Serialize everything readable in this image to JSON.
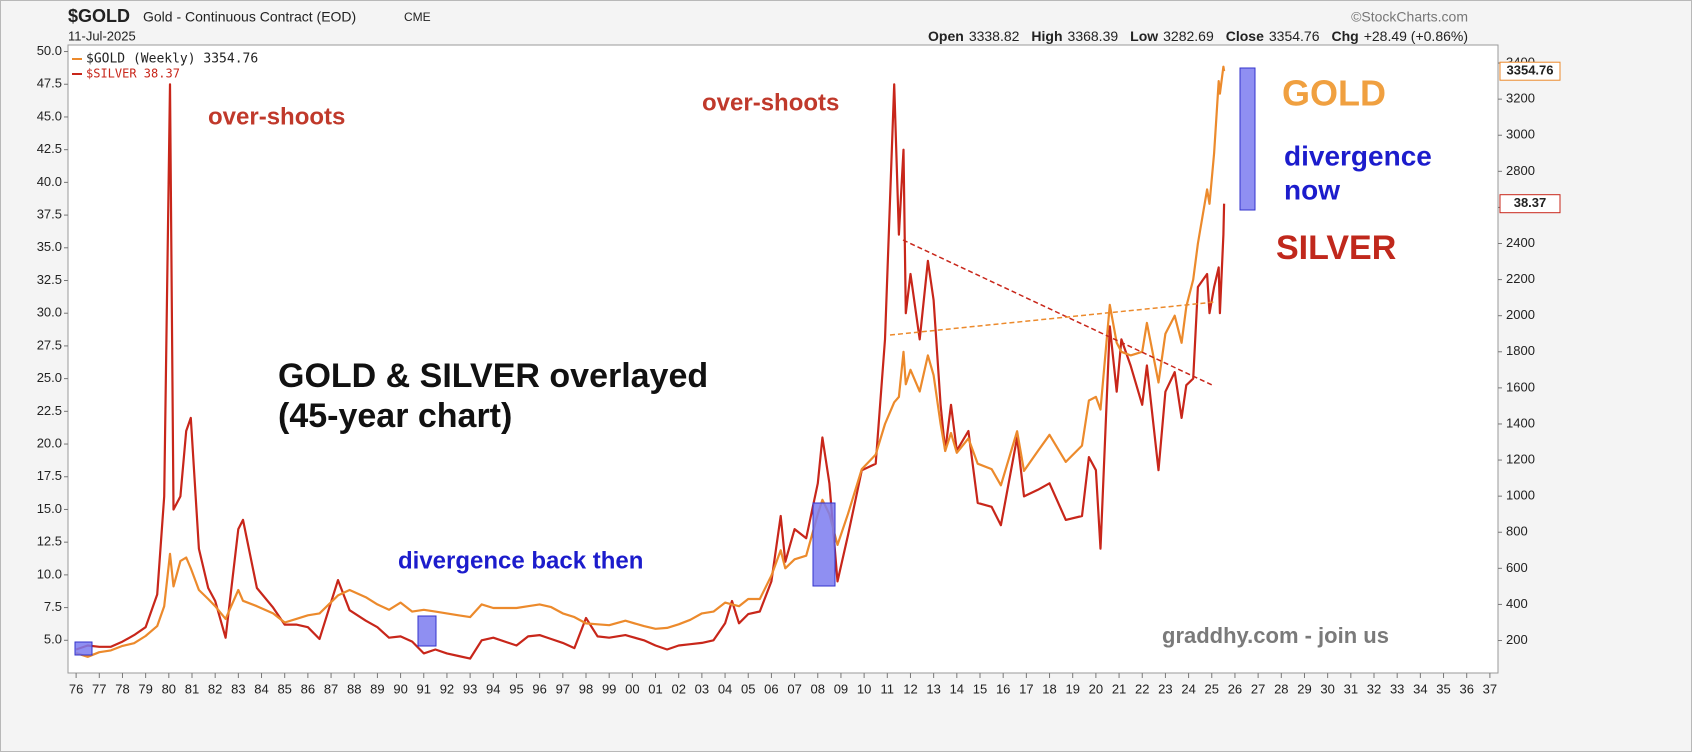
{
  "chart_data": {
    "type": "line",
    "title": "$GOLD",
    "subtitle": "Gold - Continuous Contract (EOD)",
    "exchange": "CME",
    "date": "11-Jul-2025",
    "source": "©StockCharts.com",
    "ohlc": [
      {
        "label": "Open",
        "value": "3338.82"
      },
      {
        "label": "High",
        "value": "3368.39"
      },
      {
        "label": "Low",
        "value": "3282.69"
      },
      {
        "label": "Close",
        "value": "3354.76"
      },
      {
        "label": "Chg",
        "value": "+28.49 (+0.86%)"
      }
    ],
    "annotations": {
      "overshoot_1": "over-shoots",
      "overshoot_2": "over-shoots",
      "gold": "GOLD",
      "divergence_now": [
        "divergence",
        "now"
      ],
      "silver": "SILVER",
      "headline": [
        "GOLD & SILVER overlayed",
        "(45-year chart)"
      ],
      "divergence_then": "divergence back then",
      "credit": "graddhy.com - join us"
    },
    "x": [
      1976.0,
      1976.5,
      1977.0,
      1977.5,
      1978.0,
      1978.5,
      1979.0,
      1979.5,
      1979.8,
      1980.05,
      1980.2,
      1980.5,
      1980.75,
      1980.95,
      1981.3,
      1981.7,
      1982.0,
      1982.45,
      1983.0,
      1983.2,
      1983.8,
      1984.5,
      1985.0,
      1985.5,
      1986.0,
      1986.5,
      1987.3,
      1987.8,
      1988.5,
      1989.0,
      1989.5,
      1990.0,
      1990.5,
      1991.0,
      1991.5,
      1992.0,
      1992.5,
      1993.0,
      1993.5,
      1994.0,
      1995.0,
      1995.5,
      1996.0,
      1996.5,
      1997.0,
      1997.5,
      1998.0,
      1998.5,
      1999.0,
      1999.7,
      2000.5,
      2001.0,
      2001.5,
      2002.0,
      2002.5,
      2003.0,
      2003.5,
      2004.0,
      2004.3,
      2004.6,
      2005.0,
      2005.5,
      2006.0,
      2006.4,
      2006.6,
      2007.0,
      2007.5,
      2008.0,
      2008.2,
      2008.5,
      2008.85,
      2009.3,
      2009.9,
      2010.5,
      2010.9,
      2011.3,
      2011.5,
      2011.7,
      2011.8,
      2012.0,
      2012.4,
      2012.75,
      2013.0,
      2013.3,
      2013.5,
      2013.75,
      2014.0,
      2014.5,
      2014.9,
      2015.5,
      2015.9,
      2016.6,
      2016.9,
      2017.5,
      2018.0,
      2018.7,
      2019.4,
      2019.7,
      2020.0,
      2020.2,
      2020.6,
      2020.9,
      2021.1,
      2021.5,
      2022.0,
      2022.2,
      2022.7,
      2023.0,
      2023.4,
      2023.7,
      2023.9,
      2024.2,
      2024.4,
      2024.8,
      2024.9,
      2025.1,
      2025.3,
      2025.35,
      2025.5,
      2025.53
    ],
    "series": [
      {
        "name": "$GOLD (Weekly) 3354.76",
        "color": "#ec8a2c",
        "axis": "y2",
        "values": [
          130,
          110,
          135,
          145,
          170,
          185,
          225,
          280,
          390,
          680,
          500,
          640,
          660,
          600,
          480,
          430,
          390,
          320,
          480,
          420,
          390,
          350,
          300,
          320,
          340,
          350,
          450,
          480,
          440,
          400,
          370,
          410,
          360,
          370,
          360,
          350,
          340,
          330,
          400,
          380,
          380,
          390,
          400,
          385,
          350,
          330,
          295,
          290,
          285,
          310,
          280,
          265,
          270,
          290,
          315,
          350,
          360,
          410,
          400,
          390,
          430,
          430,
          560,
          700,
          600,
          650,
          670,
          900,
          980,
          900,
          730,
          900,
          1150,
          1230,
          1400,
          1520,
          1550,
          1800,
          1620,
          1700,
          1580,
          1780,
          1670,
          1400,
          1250,
          1350,
          1240,
          1320,
          1180,
          1150,
          1060,
          1360,
          1140,
          1250,
          1340,
          1190,
          1280,
          1530,
          1550,
          1480,
          2060,
          1850,
          1800,
          1780,
          1800,
          1960,
          1630,
          1900,
          2000,
          1850,
          2050,
          2200,
          2400,
          2700,
          2620,
          2900,
          3300,
          3230,
          3380,
          3354.76
        ]
      },
      {
        "name": "$SILVER 38.37",
        "color": "#c8261a",
        "values": [
          4.3,
          4.6,
          4.5,
          4.5,
          4.9,
          5.4,
          6.0,
          8.5,
          16,
          47.5,
          15,
          16,
          21,
          22,
          12,
          9,
          8,
          5.2,
          13.5,
          14.2,
          9,
          7.5,
          6.2,
          6.2,
          6.0,
          5.1,
          9.6,
          7.3,
          6.5,
          6.0,
          5.2,
          5.3,
          4.9,
          4.0,
          4.3,
          4.0,
          3.8,
          3.6,
          5.0,
          5.2,
          4.6,
          5.3,
          5.4,
          5.1,
          4.8,
          4.4,
          6.7,
          5.3,
          5.2,
          5.4,
          5.0,
          4.6,
          4.3,
          4.6,
          4.7,
          4.8,
          5.0,
          6.3,
          8.0,
          6.3,
          7.0,
          7.2,
          9.5,
          14.5,
          11.0,
          13.5,
          12.8,
          17,
          20.5,
          17,
          9.5,
          13,
          18,
          18.5,
          28,
          47.5,
          36,
          42.5,
          30,
          33,
          28,
          34,
          31,
          23,
          19.5,
          23,
          19.5,
          21,
          15.5,
          15.2,
          13.8,
          20.5,
          16,
          16.5,
          17,
          14.2,
          14.5,
          19,
          18,
          12,
          29,
          24,
          28,
          26,
          23,
          26,
          18,
          24,
          25.5,
          22,
          24.5,
          25,
          32,
          33,
          30,
          32,
          33.5,
          30,
          36,
          38.37
        ]
      }
    ],
    "xlim": [
      1975.65,
      2037.35
    ],
    "xticks": [
      {
        "value": 1976,
        "label": "76"
      },
      {
        "value": 1977,
        "label": "77"
      },
      {
        "value": 1978,
        "label": "78"
      },
      {
        "value": 1979,
        "label": "79"
      },
      {
        "value": 1980,
        "label": "80"
      },
      {
        "value": 1981,
        "label": "81"
      },
      {
        "value": 1982,
        "label": "82"
      },
      {
        "value": 1983,
        "label": "83"
      },
      {
        "value": 1984,
        "label": "84"
      },
      {
        "value": 1985,
        "label": "85"
      },
      {
        "value": 1986,
        "label": "86"
      },
      {
        "value": 1987,
        "label": "87"
      },
      {
        "value": 1988,
        "label": "88"
      },
      {
        "value": 1989,
        "label": "89"
      },
      {
        "value": 1990,
        "label": "90"
      },
      {
        "value": 1991,
        "label": "91"
      },
      {
        "value": 1992,
        "label": "92"
      },
      {
        "value": 1993,
        "label": "93"
      },
      {
        "value": 1994,
        "label": "94"
      },
      {
        "value": 1995,
        "label": "95"
      },
      {
        "value": 1996,
        "label": "96"
      },
      {
        "value": 1997,
        "label": "97"
      },
      {
        "value": 1998,
        "label": "98"
      },
      {
        "value": 1999,
        "label": "99"
      },
      {
        "value": 2000,
        "label": "00"
      },
      {
        "value": 2001,
        "label": "01"
      },
      {
        "value": 2002,
        "label": "02"
      },
      {
        "value": 2003,
        "label": "03"
      },
      {
        "value": 2004,
        "label": "04"
      },
      {
        "value": 2005,
        "label": "05"
      },
      {
        "value": 2006,
        "label": "06"
      },
      {
        "value": 2007,
        "label": "07"
      },
      {
        "value": 2008,
        "label": "08"
      },
      {
        "value": 2009,
        "label": "09"
      },
      {
        "value": 2010,
        "label": "10"
      },
      {
        "value": 2011,
        "label": "11"
      },
      {
        "value": 2012,
        "label": "12"
      },
      {
        "value": 2013,
        "label": "13"
      },
      {
        "value": 2014,
        "label": "14"
      },
      {
        "value": 2015,
        "label": "15"
      },
      {
        "value": 2016,
        "label": "16"
      },
      {
        "value": 2017,
        "label": "17"
      },
      {
        "value": 2018,
        "label": "18"
      },
      {
        "value": 2019,
        "label": "19"
      },
      {
        "value": 2020,
        "label": "20"
      },
      {
        "value": 2021,
        "label": "21"
      },
      {
        "value": 2022,
        "label": "22"
      },
      {
        "value": 2023,
        "label": "23"
      },
      {
        "value": 2024,
        "label": "24"
      },
      {
        "value": 2025,
        "label": "25"
      },
      {
        "value": 2026,
        "label": "26"
      },
      {
        "value": 2027,
        "label": "27"
      },
      {
        "value": 2028,
        "label": "28"
      },
      {
        "value": 2029,
        "label": "29"
      },
      {
        "value": 2030,
        "label": "30"
      },
      {
        "value": 2031,
        "label": "31"
      },
      {
        "value": 2032,
        "label": "32"
      },
      {
        "value": 2033,
        "label": "33"
      },
      {
        "value": 2034,
        "label": "34"
      },
      {
        "value": 2035,
        "label": "35"
      },
      {
        "value": 2036,
        "label": "36"
      },
      {
        "value": 2037,
        "label": "37"
      }
    ],
    "ylim": [
      2.5,
      50.5
    ],
    "yticks": [
      {
        "value": 5,
        "label": "5.0"
      },
      7.5,
      {
        "value": 10,
        "label": "10.0"
      },
      12.5,
      {
        "value": 15,
        "label": "15.0"
      },
      17.5,
      {
        "value": 20,
        "label": "20.0"
      },
      22.5,
      {
        "value": 25,
        "label": "25.0"
      },
      27.5,
      {
        "value": 30,
        "label": "30.0"
      },
      32.5,
      {
        "value": 35,
        "label": "35.0"
      },
      37.5,
      {
        "value": 40,
        "label": "40.0"
      },
      42.5,
      {
        "value": 45,
        "label": "45.0"
      },
      47.5,
      {
        "value": 50,
        "label": "50.0"
      }
    ],
    "y2lim": [
      20,
      3500
    ],
    "y2ticks": [
      200,
      400,
      600,
      800,
      1000,
      1200,
      1400,
      1600,
      1800,
      2000,
      2200,
      2400,
      2600,
      2800,
      3000,
      3200,
      3400
    ],
    "grid": false
  }
}
